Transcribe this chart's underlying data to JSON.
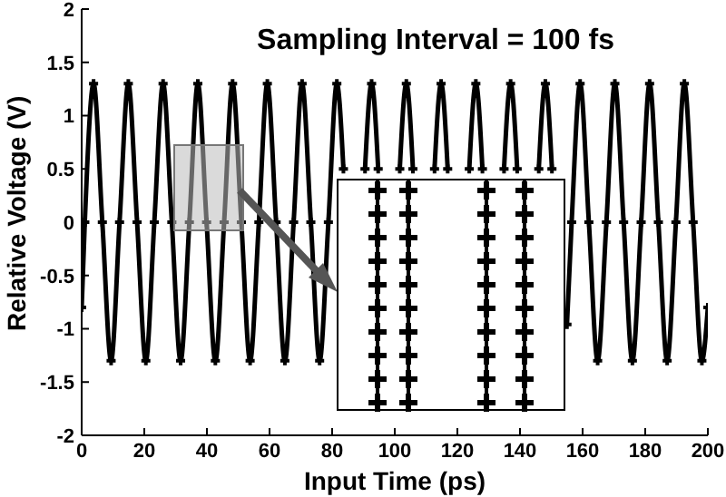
{
  "chart_data": {
    "type": "line",
    "title": "Sampling Interval = 100 fs",
    "xlabel": "Input Time (ps)",
    "ylabel": "Relative Voltage (V)",
    "xlim": [
      0,
      200
    ],
    "xticks": [
      0,
      20,
      40,
      60,
      80,
      100,
      120,
      140,
      160,
      180,
      200
    ],
    "ylim": [
      -2,
      2
    ],
    "yticks": [
      -2,
      -1.5,
      -1,
      -0.5,
      0,
      0.5,
      1,
      1.5,
      2
    ],
    "grid": false,
    "legend": false,
    "marker": "cross",
    "line_style": "solid",
    "x": [
      0,
      1.0,
      3.8,
      6.6,
      9.4,
      12.1,
      14.9,
      17.7,
      20.5,
      23.2,
      26.0,
      28.8,
      31.6,
      34.4,
      37.1,
      39.9,
      42.7,
      45.5,
      48.2,
      51.0,
      53.8,
      56.6,
      59.3,
      62.1,
      64.9,
      67.7,
      70.4,
      73.2,
      76.0,
      78.8,
      81.5,
      83.6,
      87.1,
      90.5,
      92.6,
      94.7,
      98.2,
      101.6,
      103.7,
      105.8,
      109.3,
      112.7,
      114.8,
      116.9,
      120.4,
      123.8,
      125.9,
      128.0,
      131.5,
      134.9,
      137.0,
      139.1,
      142.6,
      146.0,
      148.1,
      150.2,
      152.0,
      155.0,
      156.5,
      159.2,
      162.0,
      164.8,
      167.6,
      170.3,
      173.1,
      175.9,
      178.7,
      181.4,
      184.2,
      187.0,
      189.8,
      192.5,
      195.3,
      198.1,
      200
    ],
    "series": [
      {
        "color": "#000000",
        "values": [
          -0.8,
          0,
          1.3,
          0,
          -1.3,
          0,
          1.3,
          0,
          -1.3,
          0,
          1.3,
          0,
          -1.3,
          0,
          1.3,
          0,
          -1.3,
          0,
          1.3,
          0,
          -1.3,
          0,
          1.3,
          0,
          -1.3,
          0,
          1.3,
          0,
          -1.3,
          0,
          1.3,
          0.5,
          null,
          0.5,
          1.3,
          0.5,
          null,
          0.5,
          1.3,
          0.5,
          null,
          0.5,
          1.3,
          0.5,
          null,
          0.5,
          1.3,
          0.5,
          null,
          0.5,
          1.3,
          0.5,
          null,
          0.5,
          1.3,
          0.5,
          null,
          -0.96,
          0,
          1.3,
          0,
          -1.3,
          0,
          1.3,
          0,
          -1.3,
          0,
          1.3,
          0,
          -1.3,
          0,
          1.3,
          0,
          -1.3,
          -0.8
        ]
      }
    ]
  }
}
